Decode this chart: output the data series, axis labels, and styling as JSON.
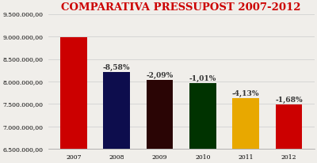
{
  "categories": [
    "2007",
    "2008",
    "2009",
    "2010",
    "2011",
    "2012"
  ],
  "values": [
    8980000,
    8210000,
    8040000,
    7958000,
    7625000,
    7497000
  ],
  "bar_colors": [
    "#cc0000",
    "#0d0d4d",
    "#2a0505",
    "#003300",
    "#e8a800",
    "#cc0000"
  ],
  "labels": [
    "",
    "-8,58%",
    "-2,09%",
    "-1,01%",
    "-4,13%",
    "-1,68%"
  ],
  "title": "COMPARATIVA PRESSUPOST 2007-2012",
  "title_color": "#cc0000",
  "ylim": [
    6500000,
    9500000
  ],
  "yticks": [
    6500000,
    7000000,
    7500000,
    8000000,
    8500000,
    9000000,
    9500000
  ],
  "background_color": "#f0eeea",
  "grid_color": "#cccccc",
  "label_fontsize": 6.5,
  "tick_fontsize": 5.5,
  "title_fontsize": 9.5
}
